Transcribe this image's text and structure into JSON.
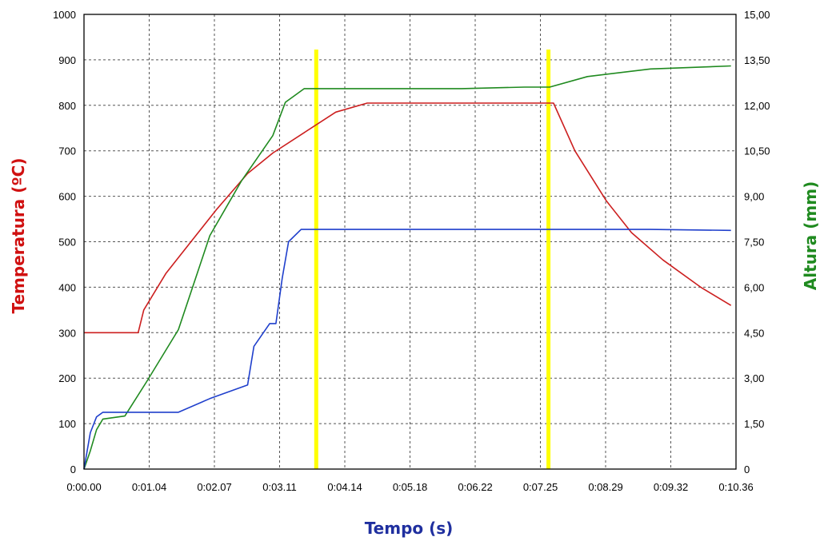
{
  "chart_data": {
    "type": "line",
    "title": "",
    "xlabel": "Tempo (s)",
    "ylabel_left": "Temperatura (ºC)",
    "ylabel_right": "Altura (mm)",
    "grid": true,
    "x_ticks": [
      "0:00.00",
      "0:01.04",
      "0:02.07",
      "0:03.11",
      "0:04.14",
      "0:05.18",
      "0:06.22",
      "0:07.25",
      "0:08.29",
      "0:09.32",
      "0:10.36"
    ],
    "x_tick_labels_as_printed": [
      "0:00.00",
      "0:01.04",
      "0:02.07",
      "0:03.11",
      "0:04.14",
      "0:05.18",
      "0:06.22",
      "0:07.25",
      "0:08.29",
      "0:09.32",
      "0:10.36"
    ],
    "xlim": [
      0,
      10.36
    ],
    "y_left_ticks": [
      "0",
      "100",
      "200",
      "300",
      "400",
      "500",
      "600",
      "700",
      "800",
      "900",
      "1000"
    ],
    "y_left_lim": [
      0,
      1000
    ],
    "y_right_ticks": [
      "0",
      "1,50",
      "3,00",
      "4,50",
      "6,00",
      "7,50",
      "9,00",
      "10,50",
      "12,00",
      "13,50",
      "15,00"
    ],
    "y_right_lim": [
      0,
      15
    ],
    "colors": {
      "temperature": "#cc1f1f",
      "height": "#1f8a1f",
      "blue": "#1f3fcc",
      "markers": "#ffff00",
      "xlabel": "#1f2f9f",
      "ylabel_left": "#d01010",
      "ylabel_right": "#1f8a1f"
    },
    "markers_x": [
      3.69,
      7.38
    ],
    "series": [
      {
        "key": "temperature",
        "axis": "left",
        "x": [
          0,
          0.86,
          0.95,
          1.3,
          1.7,
          2.1,
          2.6,
          3.0,
          3.5,
          4.0,
          4.5,
          5.0,
          6.0,
          7.0,
          7.46,
          7.8,
          8.3,
          8.7,
          9.2,
          9.8,
          10.28
        ],
        "y": [
          300,
          300,
          350,
          430,
          500,
          570,
          650,
          695,
          740,
          785,
          805,
          805,
          805,
          805,
          805,
          700,
          590,
          520,
          460,
          400,
          360
        ]
      },
      {
        "key": "height",
        "axis": "right",
        "x": [
          0,
          0.1,
          0.2,
          0.3,
          0.65,
          1.0,
          1.5,
          2.0,
          2.5,
          3.0,
          3.2,
          3.5,
          4.0,
          5.0,
          6.0,
          7.0,
          7.4,
          8.0,
          9.0,
          10.28
        ],
        "y": [
          0,
          0.6,
          1.3,
          1.65,
          1.75,
          2.9,
          4.6,
          7.7,
          9.5,
          11.0,
          12.1,
          12.55,
          12.55,
          12.55,
          12.55,
          12.6,
          12.6,
          12.95,
          13.2,
          13.3
        ]
      },
      {
        "key": "blue",
        "axis": "left",
        "x": [
          0,
          0.1,
          0.2,
          0.3,
          1.5,
          2.0,
          2.6,
          2.7,
          2.95,
          3.0,
          3.05,
          3.15,
          3.25,
          3.45,
          5.0,
          7.0,
          8.0,
          9.0,
          10.28
        ],
        "y": [
          0,
          80,
          115,
          125,
          125,
          155,
          185,
          270,
          320,
          320,
          320,
          420,
          500,
          527,
          527,
          527,
          527,
          527,
          525
        ]
      }
    ]
  }
}
